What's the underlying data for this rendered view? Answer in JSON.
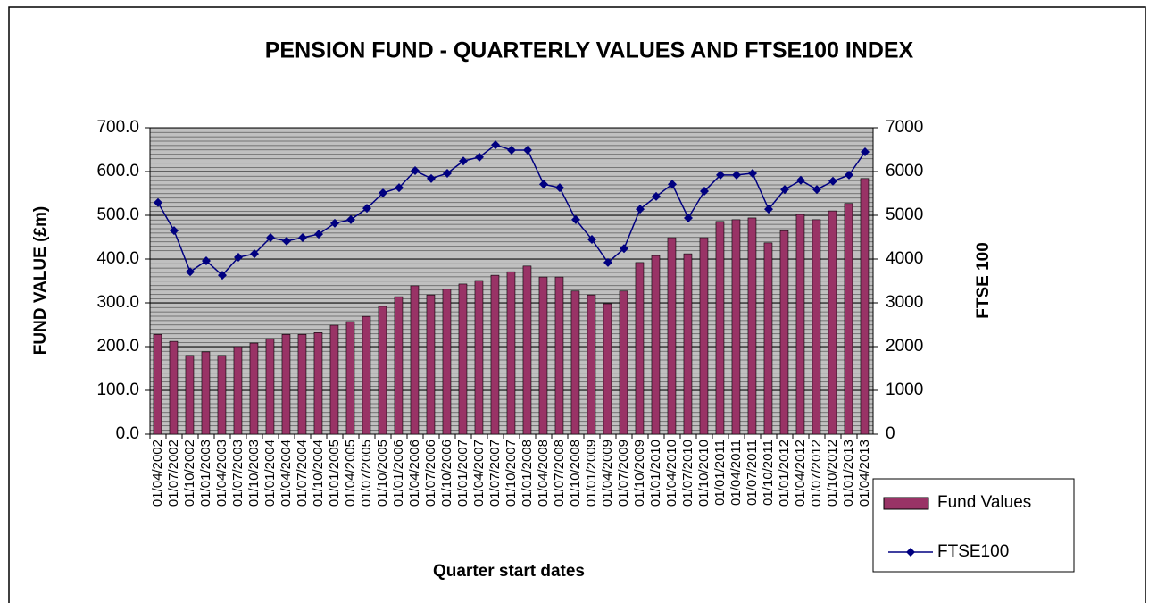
{
  "chart_data": {
    "type": "bar-line",
    "title": "PENSION FUND - QUARTERLY VALUES AND FTSE100 INDEX",
    "x_label": "Quarter start dates",
    "y_label": "FUND VALUE (£m)",
    "y2_label": "FTSE 100",
    "categories": [
      "01/04/2002",
      "01/07/2002",
      "01/10/2002",
      "01/01/2003",
      "01/04/2003",
      "01/07/2003",
      "01/10/2003",
      "01/01/2004",
      "01/04/2004",
      "01/07/2004",
      "01/10/2004",
      "01/01/2005",
      "01/04/2005",
      "01/07/2005",
      "01/10/2005",
      "01/01/2006",
      "01/04/2006",
      "01/07/2006",
      "01/10/2006",
      "01/01/2007",
      "01/04/2007",
      "01/07/2007",
      "01/10/2007",
      "01/01/2008",
      "01/04/2008",
      "01/07/2008",
      "01/10/2008",
      "01/01/2009",
      "01/04/2009",
      "01/07/2009",
      "01/10/2009",
      "01/01/2010",
      "01/04/2010",
      "01/07/2010",
      "01/10/2010",
      "01/01/2011",
      "01/04/2011",
      "01/07/2011",
      "01/10/2011",
      "01/01/2012",
      "01/04/2012",
      "01/07/2012",
      "01/10/2012",
      "01/01/2013",
      "01/04/2013"
    ],
    "series": [
      {
        "name": "Fund Values",
        "type": "bar",
        "color": "#993366",
        "values": [
          228,
          212,
          180,
          188,
          180,
          200,
          208,
          218,
          228,
          228,
          232,
          249,
          257,
          269,
          292,
          314,
          339,
          318,
          331,
          343,
          351,
          363,
          371,
          384,
          359,
          359,
          327,
          318,
          298,
          327,
          392,
          408,
          449,
          412,
          449,
          486,
          490,
          494,
          437,
          465,
          502,
          490,
          510,
          527,
          584
        ]
      },
      {
        "name": "FTSE100",
        "type": "line",
        "axis": "y2",
        "color": "#000080",
        "values": [
          5290,
          4650,
          3710,
          3960,
          3630,
          4040,
          4120,
          4490,
          4410,
          4490,
          4570,
          4820,
          4900,
          5160,
          5510,
          5630,
          6020,
          5840,
          5960,
          6240,
          6330,
          6610,
          6490,
          6490,
          5710,
          5630,
          4900,
          4450,
          3920,
          4240,
          5140,
          5430,
          5710,
          4940,
          5550,
          5920,
          5920,
          5960,
          5140,
          5590,
          5800,
          5590,
          5780,
          5920,
          6450
        ]
      }
    ],
    "ylim": [
      0,
      700
    ],
    "yticks": [
      {
        "value": 0,
        "label": "0.0"
      },
      {
        "value": 100,
        "label": "100.0"
      },
      {
        "value": 200,
        "label": "200.0"
      },
      {
        "value": 300,
        "label": "300.0"
      },
      {
        "value": 400,
        "label": "400.0"
      },
      {
        "value": 500,
        "label": "500.0"
      },
      {
        "value": 600,
        "label": "600.0"
      },
      {
        "value": 700,
        "label": "700.0"
      }
    ],
    "y2lim": [
      0,
      7000
    ],
    "y2ticks": [
      0,
      1000,
      2000,
      3000,
      4000,
      5000,
      6000,
      7000
    ],
    "grid": true,
    "legend": "right"
  }
}
